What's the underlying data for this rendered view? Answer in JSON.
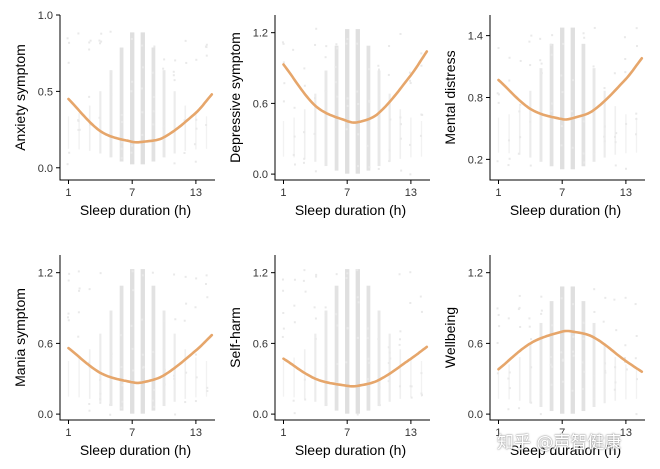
{
  "colors": {
    "curve": "#E6A66B",
    "raw_points": "#bdbdbd",
    "axis": "#000000"
  },
  "watermark": "知乎 @声智健康",
  "chart_data": [
    {
      "type": "scatter",
      "ylabel": "Anxiety symptom",
      "xlabel": "Sleep duration (h)",
      "xticks": [
        1,
        7,
        13
      ],
      "xlim": [
        0.2,
        14.8
      ],
      "yticks": [
        0.0,
        0.5,
        1.0
      ],
      "ytick_labels": [
        "0.0",
        "0.5",
        "1.0"
      ],
      "ylim": [
        -0.08,
        1.0
      ],
      "curve": {
        "x": [
          1,
          4,
          7,
          8,
          10,
          13,
          14.5
        ],
        "y": [
          0.45,
          0.24,
          0.17,
          0.17,
          0.2,
          0.36,
          0.48
        ]
      },
      "raw_range": [
        0.02,
        0.9
      ]
    },
    {
      "type": "scatter",
      "ylabel": "Depressive symptom",
      "xlabel": "Sleep duration (h)",
      "xticks": [
        1,
        7,
        13
      ],
      "xlim": [
        0.2,
        14.8
      ],
      "yticks": [
        0.0,
        0.6,
        1.2
      ],
      "ytick_labels": [
        "0.0",
        "0.6",
        "1.2"
      ],
      "ylim": [
        -0.05,
        1.35
      ],
      "curve": {
        "x": [
          1,
          4,
          7,
          8,
          10,
          13,
          14.5
        ],
        "y": [
          0.93,
          0.58,
          0.45,
          0.44,
          0.52,
          0.84,
          1.04
        ]
      },
      "raw_range": [
        0.0,
        1.25
      ]
    },
    {
      "type": "scatter",
      "ylabel": "Mental distress",
      "xlabel": "Sleep duration (h)",
      "xticks": [
        1,
        7,
        13
      ],
      "xlim": [
        0.2,
        14.8
      ],
      "yticks": [
        0.2,
        0.8,
        1.4
      ],
      "ytick_labels": [
        "0.2",
        "0.8",
        "1.4"
      ],
      "ylim": [
        0.0,
        1.6
      ],
      "curve": {
        "x": [
          1,
          4,
          7,
          8,
          10,
          13,
          14.5
        ],
        "y": [
          0.97,
          0.69,
          0.59,
          0.6,
          0.68,
          0.98,
          1.18
        ]
      },
      "raw_range": [
        0.1,
        1.5
      ]
    },
    {
      "type": "scatter",
      "ylabel": "Mania symptom",
      "xlabel": "Sleep duration (h)",
      "xticks": [
        1,
        7,
        13
      ],
      "xlim": [
        0.2,
        14.8
      ],
      "yticks": [
        0.0,
        0.6,
        1.2
      ],
      "ytick_labels": [
        "0.0",
        "0.6",
        "1.2"
      ],
      "ylim": [
        -0.05,
        1.35
      ],
      "curve": {
        "x": [
          1,
          4,
          7,
          8,
          10,
          13,
          14.5
        ],
        "y": [
          0.56,
          0.35,
          0.27,
          0.27,
          0.33,
          0.54,
          0.67
        ]
      },
      "raw_range": [
        0.0,
        1.25
      ]
    },
    {
      "type": "scatter",
      "ylabel": "Self-harm",
      "xlabel": "Sleep duration (h)",
      "xticks": [
        1,
        7,
        13
      ],
      "xlim": [
        0.2,
        14.8
      ],
      "yticks": [
        0.0,
        0.6,
        1.2
      ],
      "ytick_labels": [
        "0.0",
        "0.6",
        "1.2"
      ],
      "ylim": [
        -0.05,
        1.35
      ],
      "curve": {
        "x": [
          1,
          4,
          7,
          8,
          10,
          13,
          14.5
        ],
        "y": [
          0.47,
          0.3,
          0.24,
          0.24,
          0.29,
          0.47,
          0.57
        ]
      },
      "raw_range": [
        0.0,
        1.25
      ]
    },
    {
      "type": "scatter",
      "ylabel": "Wellbeing",
      "xlabel": "Sleep duration (h)",
      "xticks": [
        1,
        7,
        13
      ],
      "xlim": [
        0.2,
        14.8
      ],
      "yticks": [
        0.0,
        0.6,
        1.2
      ],
      "ytick_labels": [
        "0.0",
        "0.6",
        "1.2"
      ],
      "ylim": [
        -0.05,
        1.35
      ],
      "curve": {
        "x": [
          1,
          4,
          7,
          8,
          10,
          13,
          14.5
        ],
        "y": [
          0.38,
          0.6,
          0.7,
          0.7,
          0.65,
          0.45,
          0.36
        ]
      },
      "raw_range": [
        0.0,
        1.1
      ]
    }
  ]
}
